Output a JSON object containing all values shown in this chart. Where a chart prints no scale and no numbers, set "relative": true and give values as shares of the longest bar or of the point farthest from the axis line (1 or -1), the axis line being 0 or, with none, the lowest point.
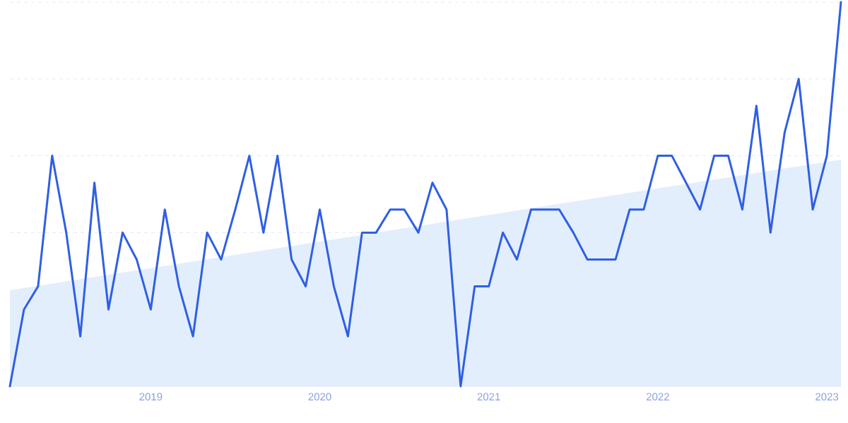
{
  "chart_data": {
    "type": "line",
    "relative": true,
    "grid": "y",
    "marker": "none",
    "line_style": "solid",
    "x": [
      "2018-03",
      "2018-04",
      "2018-05",
      "2018-06",
      "2018-07",
      "2018-08",
      "2018-09",
      "2018-10",
      "2018-11",
      "2018-12",
      "2019-01",
      "2019-02",
      "2019-03",
      "2019-04",
      "2019-05",
      "2019-06",
      "2019-07",
      "2019-08",
      "2019-09",
      "2019-10",
      "2019-11",
      "2019-12",
      "2020-01",
      "2020-02",
      "2020-03",
      "2020-04",
      "2020-05",
      "2020-06",
      "2020-07",
      "2020-08",
      "2020-09",
      "2020-10",
      "2020-11",
      "2020-12",
      "2021-01",
      "2021-02",
      "2021-03",
      "2021-04",
      "2021-05",
      "2021-06",
      "2021-07",
      "2021-08",
      "2021-09",
      "2021-10",
      "2021-11",
      "2021-12",
      "2022-01",
      "2022-02",
      "2022-03",
      "2022-04",
      "2022-05",
      "2022-06",
      "2022-07",
      "2022-08",
      "2022-09",
      "2022-10",
      "2022-11",
      "2022-12",
      "2023-01",
      "2023-02"
    ],
    "xlim": [
      "2018-03",
      "2023-02"
    ],
    "xticks": [
      {
        "value": "2019-01",
        "label": "2019"
      },
      {
        "value": "2020-01",
        "label": "2020"
      },
      {
        "value": "2021-01",
        "label": "2021"
      },
      {
        "value": "2022-01",
        "label": "2022"
      },
      {
        "value": "2023-01",
        "label": "2023"
      }
    ],
    "series": [
      {
        "type": "area",
        "color": "#e3eefc",
        "x": [
          "2018-03",
          "2023-02"
        ],
        "values": [
          0.25,
          0.59
        ]
      },
      {
        "color": "#2f5fe3",
        "values": [
          0,
          0.2,
          0.26,
          0.6,
          0.4,
          0.13,
          0.53,
          0.2,
          0.4,
          0.33,
          0.2,
          0.46,
          0.26,
          0.13,
          0.4,
          0.33,
          0.46,
          0.6,
          0.4,
          0.6,
          0.33,
          0.26,
          0.46,
          0.26,
          0.13,
          0.4,
          0.4,
          0.46,
          0.46,
          0.4,
          0.53,
          0.46,
          0,
          0.26,
          0.26,
          0.4,
          0.33,
          0.46,
          0.46,
          0.46,
          0.4,
          0.33,
          0.33,
          0.33,
          0.46,
          0.46,
          0.6,
          0.6,
          0.53,
          0.46,
          0.6,
          0.6,
          0.46,
          0.73,
          0.4,
          0.66,
          0.8,
          0.46,
          0.6,
          1
        ]
      }
    ]
  }
}
